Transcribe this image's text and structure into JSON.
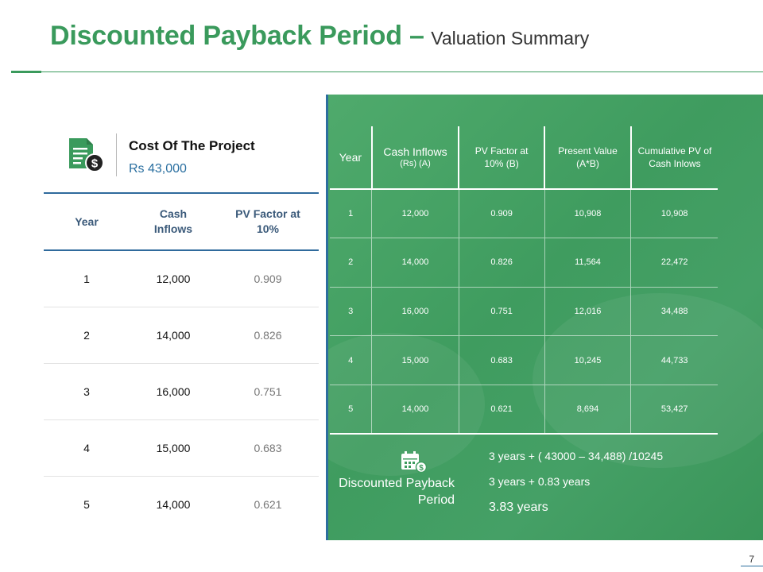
{
  "header": {
    "title_main": "Discounted Payback Period –",
    "title_sub": "Valuation Summary"
  },
  "cost": {
    "title": "Cost Of The Project",
    "value": "Rs 43,000",
    "icon": "dollar-document-icon"
  },
  "left_table": {
    "headers": [
      "Year",
      "Cash Inflows",
      "PV Factor at 10%"
    ],
    "rows": [
      [
        "1",
        "12,000",
        "0.909"
      ],
      [
        "2",
        "14,000",
        "0.826"
      ],
      [
        "3",
        "16,000",
        "0.751"
      ],
      [
        "4",
        "15,000",
        "0.683"
      ],
      [
        "5",
        "14,000",
        "0.621"
      ]
    ]
  },
  "right_table": {
    "headers": [
      {
        "main": "Year",
        "sub": ""
      },
      {
        "main": "Cash Inflows",
        "sub": "(Rs) (A)"
      },
      {
        "main": "PV Factor at 10% (B)",
        "sub": ""
      },
      {
        "main": "Present Value (A*B)",
        "sub": ""
      },
      {
        "main": "Cumulative PV of Cash Inlows",
        "sub": ""
      }
    ],
    "rows": [
      [
        "1",
        "12,000",
        "0.909",
        "10,908",
        "10,908"
      ],
      [
        "2",
        "14,000",
        "0.826",
        "11,564",
        "22,472"
      ],
      [
        "3",
        "16,000",
        "0.751",
        "12,016",
        "34,488"
      ],
      [
        "4",
        "15,000",
        "0.683",
        "10,245",
        "44,733"
      ],
      [
        "5",
        "14,000",
        "0.621",
        "8,694",
        "53,427"
      ]
    ]
  },
  "payback": {
    "label": "Discounted Payback Period",
    "icon": "calendar-dollar-icon",
    "line1": "3 years + ( 43000 – 34,488) /10245",
    "line2": "3 years + 0.83 years",
    "result": "3.83 years"
  },
  "page_number": "7",
  "colors": {
    "brand_green": "#3a9a5c",
    "panel_green": "#45a066",
    "accent_blue": "#2f6a9c"
  }
}
